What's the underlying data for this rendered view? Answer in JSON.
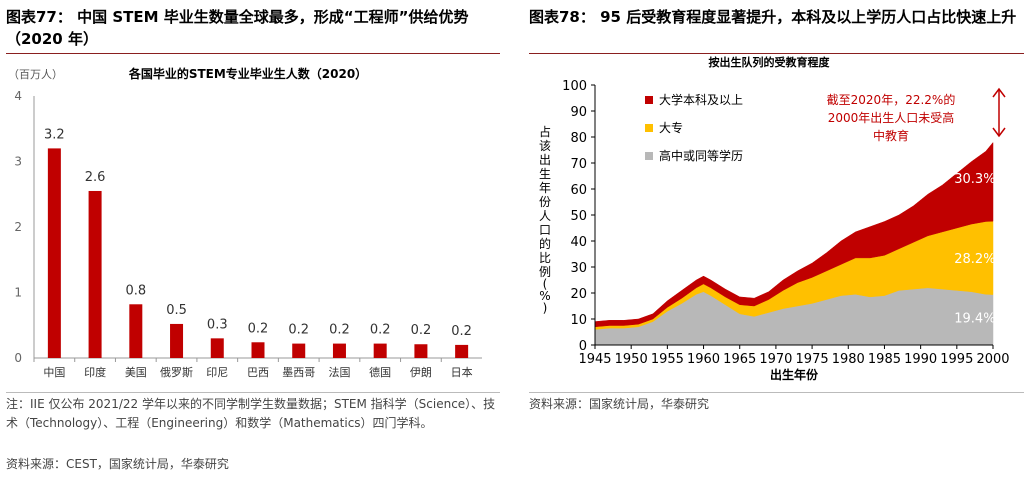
{
  "left": {
    "figure_title": "图表77： 中国 STEM 毕业生数量全球最多，形成“工程师”供给优势（2020 年）",
    "unit": "（百万人）",
    "notes": [
      "注：IIE 仅公布 2021/22 学年以来的不同学制学生数量数据；STEM 指科学（Science）、技术（Technology）、工程（Engineering）和数学（Mathematics）四门学科。",
      "资料来源：CEST，国家统计局，华泰研究"
    ],
    "chart_data": {
      "type": "bar",
      "title": "各国毕业的STEM专业毕业生人数（2020）",
      "categories": [
        "中国",
        "印度",
        "美国",
        "俄罗斯",
        "印尼",
        "巴西",
        "墨西哥",
        "法国",
        "德国",
        "伊朗",
        "日本"
      ],
      "values": [
        3.2,
        2.55,
        0.82,
        0.52,
        0.3,
        0.24,
        0.22,
        0.22,
        0.22,
        0.21,
        0.2
      ],
      "data_labels": [
        "3.2",
        "2.6",
        "0.8",
        "0.5",
        "0.3",
        "0.2",
        "0.2",
        "0.2",
        "0.2",
        "0.2",
        "0.2"
      ],
      "ylim": [
        0,
        4
      ],
      "yticks": [
        "0",
        "1",
        "2",
        "3",
        "4"
      ],
      "color": "#c00000"
    }
  },
  "right": {
    "figure_title": "图表78： 95 后受教育程度显著提升，本科及以上学历人口占比快速上升",
    "notes": [
      "资料来源：国家统计局，华泰研究"
    ],
    "chart_data": {
      "type": "area",
      "title": "按出生队列的受教育程度",
      "xlabel": "出生年份",
      "ylabel": "占该出生年份人口的比例(%)",
      "xlim": [
        1945,
        2000
      ],
      "ylim": [
        0,
        100
      ],
      "xticks": [
        "1945",
        "1950",
        "1955",
        "1960",
        "1965",
        "1970",
        "1975",
        "1980",
        "1985",
        "1990",
        "1995",
        "2000"
      ],
      "yticks": [
        "0",
        "10",
        "20",
        "30",
        "40",
        "50",
        "60",
        "70",
        "80",
        "90",
        "100"
      ],
      "x": [
        1945,
        1947,
        1949,
        1951,
        1953,
        1955,
        1957,
        1959,
        1960,
        1961,
        1963,
        1965,
        1967,
        1969,
        1971,
        1973,
        1975,
        1977,
        1979,
        1981,
        1983,
        1985,
        1987,
        1989,
        1991,
        1993,
        1995,
        1997,
        1999,
        2000
      ],
      "series": [
        {
          "name": "高中或同等学历",
          "color": "#b8b8b8",
          "values": [
            6,
            6.5,
            6.5,
            7,
            9,
            13,
            16,
            19.5,
            20.5,
            19,
            15.5,
            12,
            11,
            12.5,
            14,
            15,
            16,
            17.5,
            19,
            19.5,
            18.5,
            19,
            21,
            21.5,
            22,
            21.5,
            21,
            20.5,
            19.5,
            19.4
          ]
        },
        {
          "name": "大专",
          "color": "#ffc000",
          "values": [
            1,
            1,
            1,
            1,
            1,
            1.5,
            2,
            2.5,
            3,
            3,
            3,
            3.5,
            4,
            5,
            7,
            9,
            10,
            11,
            12,
            14,
            15,
            15.5,
            16,
            18,
            20,
            22,
            24,
            26,
            28,
            28.2
          ]
        },
        {
          "name": "大学本科及以上",
          "color": "#c00000",
          "values": [
            2,
            2,
            2,
            2,
            2,
            2.5,
            3,
            3,
            3,
            3,
            3,
            3,
            3,
            3,
            4,
            4.5,
            5.5,
            7,
            9,
            10,
            12,
            13,
            13,
            14,
            16,
            18,
            21,
            24,
            27,
            30.3
          ]
        }
      ],
      "data_labels": [
        {
          "text": "19.4%",
          "series": "高中或同等学历"
        },
        {
          "text": "28.2%",
          "series": "大专"
        },
        {
          "text": "30.3%",
          "series": "大学本科及以上"
        }
      ],
      "annotation": "截至2020年，22.2%的2000年出生人口未受高中教育",
      "annotation_lines": [
        "截至2020年，22.2%的",
        "2000年出生人口未受高",
        "中教育"
      ],
      "annotation_color": "#c00000",
      "legend_position": "top-left"
    }
  }
}
